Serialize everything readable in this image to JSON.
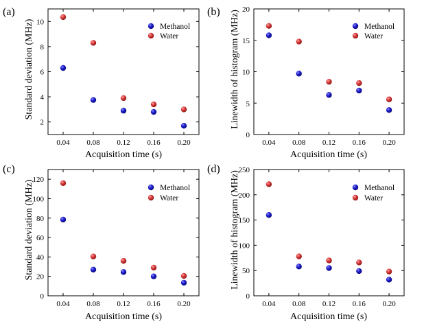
{
  "figure": {
    "colors": {
      "methanol": "#1414b8",
      "water": "#d83a3a"
    }
  },
  "chart_data": [
    {
      "type": "scatter",
      "panel_label": "(a)",
      "xlabel": "Acquisition time (s)",
      "ylabel": "Standard deviation (MHz)",
      "x": [
        0.04,
        0.08,
        0.12,
        0.16,
        0.2
      ],
      "x_ticks": [
        "0.04",
        "0.08",
        "0.12",
        "0.16",
        "0.20"
      ],
      "xlim": [
        0.02,
        0.22
      ],
      "ylim": [
        1,
        11
      ],
      "y_ticks": [
        "2",
        "4",
        "6",
        "8",
        "10"
      ],
      "y_tick_values": [
        2,
        4,
        6,
        8,
        10
      ],
      "legend": "top-right",
      "series": [
        {
          "name": "Methanol",
          "values": [
            6.3,
            3.75,
            2.9,
            2.8,
            1.7
          ]
        },
        {
          "name": "Water",
          "values": [
            10.35,
            8.3,
            3.9,
            3.4,
            3.0
          ]
        }
      ]
    },
    {
      "type": "scatter",
      "panel_label": "(b)",
      "xlabel": "Acquisition time (s)",
      "ylabel": "Linewidth of histogram (MHz)",
      "x": [
        0.04,
        0.08,
        0.12,
        0.16,
        0.2
      ],
      "x_ticks": [
        "0.04",
        "0.08",
        "0.12",
        "0.16",
        "0.20"
      ],
      "xlim": [
        0.02,
        0.22
      ],
      "ylim": [
        0,
        20
      ],
      "y_ticks": [
        "0",
        "5",
        "10",
        "15",
        "20"
      ],
      "y_tick_values": [
        0,
        5,
        10,
        15,
        20
      ],
      "legend": "top-right",
      "series": [
        {
          "name": "Methanol",
          "values": [
            15.8,
            9.7,
            6.3,
            7.0,
            3.9
          ]
        },
        {
          "name": "Water",
          "values": [
            17.3,
            14.8,
            8.4,
            8.2,
            5.6
          ]
        }
      ]
    },
    {
      "type": "scatter",
      "panel_label": "(c)",
      "xlabel": "Acquisition time (s)",
      "ylabel": "Standard deviation (MHz)",
      "x": [
        0.04,
        0.08,
        0.12,
        0.16,
        0.2
      ],
      "x_ticks": [
        "0.04",
        "0.08",
        "0.12",
        "0.16",
        "0.20"
      ],
      "xlim": [
        0.02,
        0.22
      ],
      "ylim": [
        0,
        130
      ],
      "y_ticks": [
        "0",
        "20",
        "40",
        "60",
        "80",
        "100",
        "120"
      ],
      "y_tick_values": [
        0,
        20,
        40,
        60,
        80,
        100,
        120
      ],
      "legend": "top-right",
      "series": [
        {
          "name": "Methanol",
          "values": [
            78.5,
            27.0,
            24.5,
            20.0,
            13.5
          ]
        },
        {
          "name": "Water",
          "values": [
            116.0,
            40.5,
            36.0,
            29.0,
            20.5
          ]
        }
      ]
    },
    {
      "type": "scatter",
      "panel_label": "(d)",
      "xlabel": "Acquisition time (s)",
      "ylabel": "Linewidth of histogram (MHz)",
      "x": [
        0.04,
        0.08,
        0.12,
        0.16,
        0.2
      ],
      "x_ticks": [
        "0.04",
        "0.08",
        "0.12",
        "0.16",
        "0.20"
      ],
      "xlim": [
        0.02,
        0.22
      ],
      "ylim": [
        0,
        250
      ],
      "y_ticks": [
        "0",
        "50",
        "100",
        "150",
        "200",
        "250"
      ],
      "y_tick_values": [
        0,
        50,
        100,
        150,
        200,
        250
      ],
      "legend": "top-right",
      "series": [
        {
          "name": "Methanol",
          "values": [
            160.0,
            58.0,
            55.0,
            49.0,
            32.0
          ]
        },
        {
          "name": "Water",
          "values": [
            221.0,
            78.0,
            70.0,
            66.0,
            48.0
          ]
        }
      ]
    }
  ]
}
